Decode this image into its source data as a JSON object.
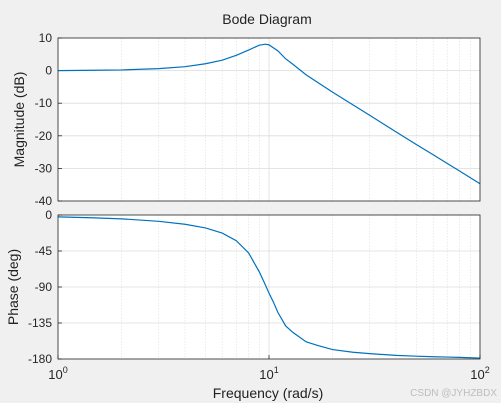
{
  "chart_data": {
    "type": "line",
    "title": "Bode Diagram",
    "xlabel": "Frequency  (rad/s)",
    "x_scale": "log",
    "xlim": [
      1,
      100
    ],
    "x_ticks": [
      {
        "value": 1,
        "base": "10",
        "exp": "0"
      },
      {
        "value": 10,
        "base": "10",
        "exp": "1"
      },
      {
        "value": 100,
        "base": "10",
        "exp": "2"
      }
    ],
    "grid": true,
    "line_color": "#0072bd",
    "panels": [
      {
        "name": "magnitude",
        "ylabel": "Magnitude (dB)",
        "ylim": [
          -40,
          10
        ],
        "y_ticks": [
          "10",
          "0",
          "-10",
          "-20",
          "-30",
          "-40"
        ],
        "y_tick_values": [
          10,
          0,
          -10,
          -20,
          -30,
          -40
        ],
        "series": [
          {
            "x": [
              1,
              1.5,
              2,
              3,
              4,
              5,
              6,
              7,
              8,
              9,
              9.6,
              10,
              11,
              12,
              13,
              15,
              17,
              20,
              25,
              30,
              40,
              50,
              60,
              70,
              80,
              100
            ],
            "y": [
              0.0,
              0.1,
              0.2,
              0.6,
              1.2,
              2.1,
              3.2,
              4.7,
              6.3,
              7.8,
              8.1,
              7.9,
              6.1,
              3.6,
              1.9,
              -1.3,
              -3.6,
              -6.6,
              -10.5,
              -13.7,
              -18.8,
              -22.7,
              -25.8,
              -28.5,
              -30.8,
              -34.7
            ]
          }
        ]
      },
      {
        "name": "phase",
        "ylabel": "Phase (deg)",
        "ylim": [
          -180,
          0
        ],
        "y_ticks": [
          "0",
          "-45",
          "-90",
          "-135",
          "-180"
        ],
        "y_tick_values": [
          0,
          -45,
          -90,
          -135,
          -180
        ],
        "series": [
          {
            "x": [
              1,
              1.5,
              2,
              3,
              4,
              5,
              6,
              7,
              8,
              9,
              9.5,
              10,
              10.5,
              11,
              12,
              13,
              15,
              17,
              20,
              25,
              30,
              40,
              50,
              60,
              70,
              80,
              100
            ],
            "y": [
              -2.3,
              -3.6,
              -4.8,
              -7.9,
              -11.6,
              -16.2,
              -22.6,
              -32.1,
              -47.3,
              -71.2,
              -84.6,
              -97.6,
              -109.0,
              -121.4,
              -138.7,
              -146.9,
              -158.6,
              -163.1,
              -168.2,
              -171.6,
              -173.3,
              -175.5,
              -176.5,
              -177.2,
              -177.6,
              -178.0,
              -178.8
            ]
          }
        ]
      }
    ]
  },
  "watermark": "CSDN @JYHZBDX"
}
